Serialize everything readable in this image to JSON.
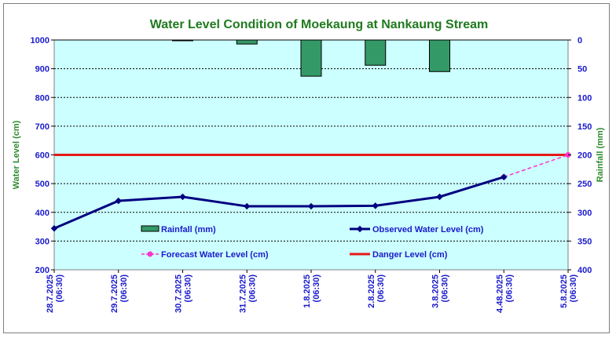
{
  "chart_data": {
    "type": "bar+line",
    "title": "Water Level Condition of Moekaung at Nankaung Stream",
    "ylabel": "Water Level (cm)",
    "y2label": "Rainfall (mm)",
    "ylim": [
      200,
      1000
    ],
    "y2lim": [
      0,
      400
    ],
    "y2_reversed": true,
    "yticks": [
      "200",
      "300",
      "400",
      "500",
      "600",
      "700",
      "800",
      "900",
      "1000"
    ],
    "y2ticks": [
      "0",
      "50",
      "100",
      "150",
      "200",
      "250",
      "300",
      "350",
      "400"
    ],
    "categories": [
      [
        "28.7.2025",
        "(06:30)"
      ],
      [
        "29.7.2025",
        "(06:30)"
      ],
      [
        "30.7.2025",
        "(06:30)"
      ],
      [
        "31.7.2025",
        "(06:30)"
      ],
      [
        "1.8.2025",
        "(06:30)"
      ],
      [
        "2.8.2025",
        "(06:30)"
      ],
      [
        "3.8.2025",
        "(06:30)"
      ],
      [
        "4.48.2025",
        "(06:30)"
      ],
      [
        "5.8.2025",
        "(06:30)"
      ]
    ],
    "grid": true,
    "background_color": "#ccffff",
    "series": [
      {
        "name": "Rainfall (mm)",
        "kind": "bar",
        "axis": "right",
        "color": "#339966",
        "values": [
          null,
          null,
          1,
          7,
          63,
          44,
          55,
          null,
          null
        ]
      },
      {
        "name": "Observed Water Level (cm)",
        "kind": "line",
        "axis": "left",
        "color": "#000080",
        "values": [
          344,
          440,
          454,
          421,
          421,
          423,
          454,
          523,
          null
        ]
      },
      {
        "name": "Forecast Water Level (cm)",
        "kind": "line-dashed",
        "axis": "left",
        "color": "#ff33cc",
        "points": [
          [
            7,
            523
          ],
          [
            8,
            600
          ]
        ]
      },
      {
        "name": "Danger Level (cm)",
        "kind": "hline",
        "axis": "left",
        "color": "#e61919",
        "value": 600
      }
    ]
  }
}
